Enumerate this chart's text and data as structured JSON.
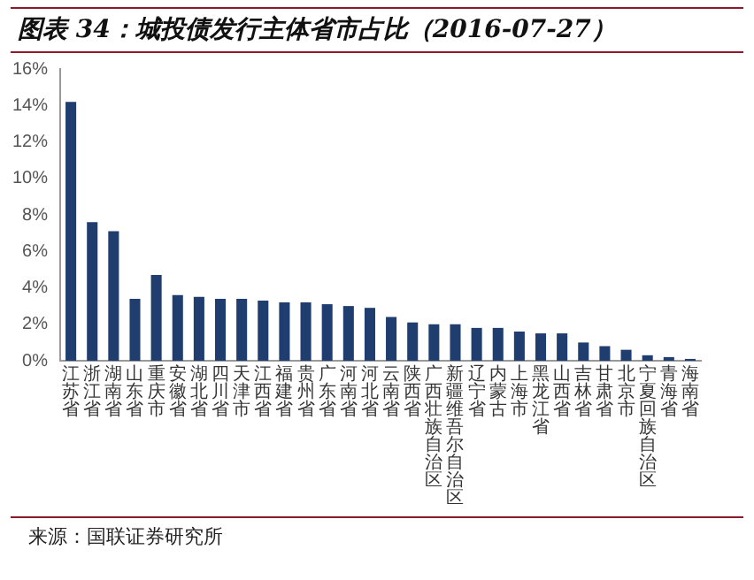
{
  "chart_data": {
    "type": "bar",
    "title": "图表 34：城投债发行主体省市占比（2016-07-27）",
    "categories": [
      "江苏省",
      "浙江省",
      "湖南省",
      "山东省",
      "重庆市",
      "安徽省",
      "湖北省",
      "四川省",
      "天津市",
      "江西省",
      "福建省",
      "贵州省",
      "广东省",
      "河南省",
      "河北省",
      "云南省",
      "陕西省",
      "广西壮族自治区",
      "新疆维吾尔自治区",
      "辽宁省",
      "内蒙古",
      "上海市",
      "黑龙江省",
      "山西省",
      "吉林省",
      "甘肃省",
      "北京市",
      "宁夏回族自治区",
      "青海省",
      "海南省"
    ],
    "values": [
      14.2,
      7.6,
      7.1,
      3.4,
      4.7,
      3.6,
      3.5,
      3.4,
      3.4,
      3.3,
      3.2,
      3.2,
      3.1,
      3.0,
      2.9,
      2.4,
      2.1,
      2.0,
      2.0,
      1.8,
      1.8,
      1.6,
      1.5,
      1.5,
      1.0,
      0.8,
      0.6,
      0.3,
      0.2,
      0.1
    ],
    "color": "#1f3d6e",
    "ylim": [
      0,
      16
    ],
    "yticks": [
      {
        "value": 0,
        "label": "0%"
      },
      {
        "value": 2,
        "label": "2%"
      },
      {
        "value": 4,
        "label": "4%"
      },
      {
        "value": 6,
        "label": "6%"
      },
      {
        "value": 8,
        "label": "8%"
      },
      {
        "value": 10,
        "label": "10%"
      },
      {
        "value": 12,
        "label": "12%"
      },
      {
        "value": 14,
        "label": "14%"
      },
      {
        "value": 16,
        "label": "16%"
      }
    ],
    "annotations": [
      "来源：国联证券研究所"
    ]
  }
}
